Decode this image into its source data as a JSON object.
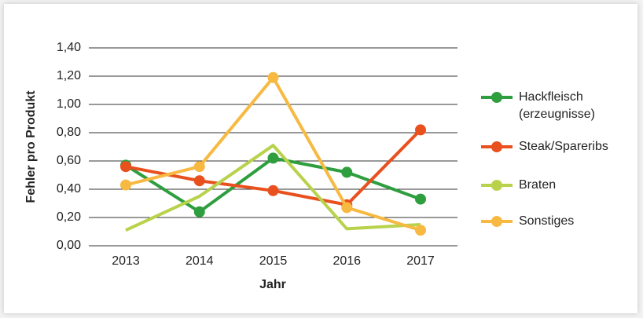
{
  "chart_data": {
    "type": "line",
    "x_label": "Jahr",
    "y_label": "Fehler pro Produkt",
    "categories": [
      "2013",
      "2014",
      "2015",
      "2016",
      "2017"
    ],
    "ylim": [
      0,
      1.4
    ],
    "yticks": [
      {
        "value": 0,
        "label": "0,00"
      },
      {
        "value": 0.2,
        "label": "0,20"
      },
      {
        "value": 0.4,
        "label": "0,40"
      },
      {
        "value": 0.6,
        "label": "0,60"
      },
      {
        "value": 0.8,
        "label": "0,80"
      },
      {
        "value": 1.0,
        "label": "1,00"
      },
      {
        "value": 1.2,
        "label": "1,20"
      },
      {
        "value": 1.4,
        "label": "1,40"
      }
    ],
    "grid": true,
    "legend": "right",
    "series": [
      {
        "name": "Hackfleisch (erzeugnisse)",
        "color": "#2e9e3e",
        "markers": true,
        "values": [
          0.57,
          0.24,
          0.62,
          0.52,
          0.33
        ]
      },
      {
        "name": "Steak/Spareribs",
        "color": "#e8501e",
        "markers": true,
        "values": [
          0.56,
          0.46,
          0.39,
          0.29,
          0.82
        ]
      },
      {
        "name": "Braten",
        "color": "#b8d24c",
        "markers": false,
        "values": [
          0.11,
          0.35,
          0.71,
          0.12,
          0.15
        ]
      },
      {
        "name": "Sonstiges",
        "color": "#f7b942",
        "markers": true,
        "values": [
          0.43,
          0.56,
          1.19,
          0.27,
          0.11
        ]
      }
    ]
  }
}
